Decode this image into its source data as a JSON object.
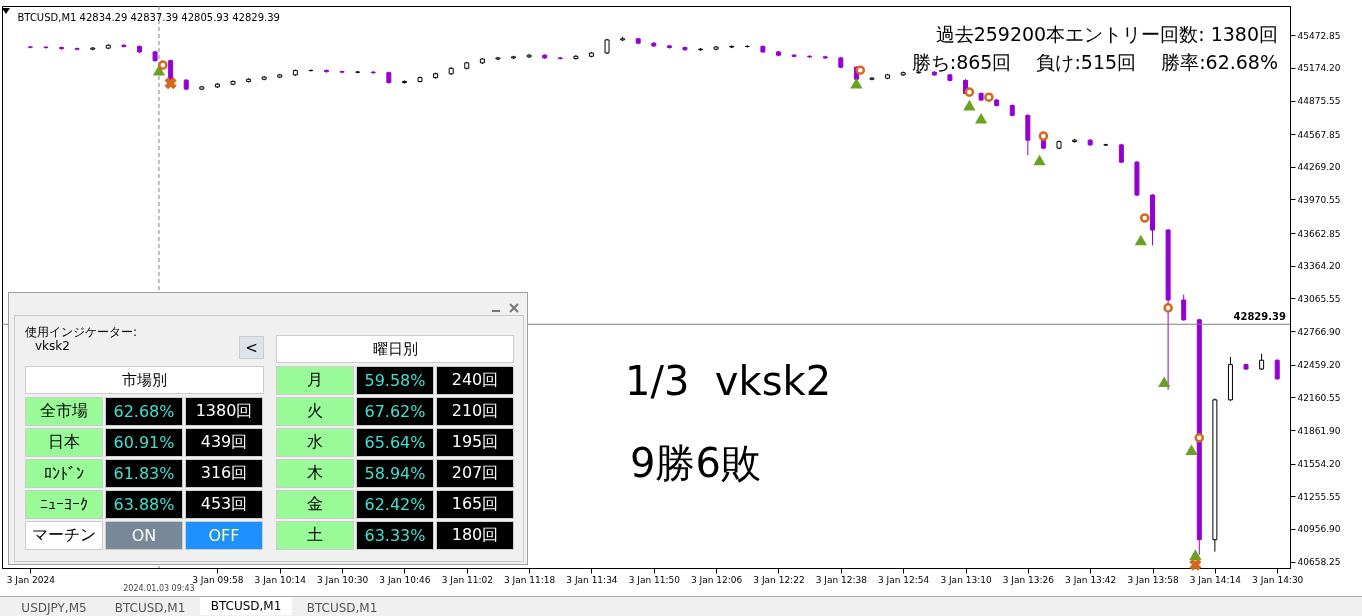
{
  "chart_data": {
    "type": "candlestick",
    "title": "BTCUSD,M1  42834.29 42837.39 42805.93 42829.39",
    "x": [
      "2024-01-03T09:10",
      "2024-01-03T09:14",
      "2024-01-03T09:18",
      "2024-01-03T09:22",
      "2024-01-03T09:26",
      "2024-01-03T09:30",
      "2024-01-03T09:34",
      "2024-01-03T09:38",
      "2024-01-03T09:42",
      "2024-01-03T09:46",
      "2024-01-03T09:50",
      "2024-01-03T09:54",
      "2024-01-03T09:58",
      "2024-01-03T10:02",
      "2024-01-03T10:06",
      "2024-01-03T10:10",
      "2024-01-03T10:14",
      "2024-01-03T10:18",
      "2024-01-03T10:22",
      "2024-01-03T10:26",
      "2024-01-03T10:30",
      "2024-01-03T10:34",
      "2024-01-03T10:38",
      "2024-01-03T10:42",
      "2024-01-03T10:46",
      "2024-01-03T10:50",
      "2024-01-03T10:54",
      "2024-01-03T10:58",
      "2024-01-03T11:02",
      "2024-01-03T11:06",
      "2024-01-03T11:10",
      "2024-01-03T11:14",
      "2024-01-03T11:18",
      "2024-01-03T11:22",
      "2024-01-03T11:26",
      "2024-01-03T11:30",
      "2024-01-03T11:34",
      "2024-01-03T11:38",
      "2024-01-03T11:42",
      "2024-01-03T11:46",
      "2024-01-03T11:50",
      "2024-01-03T11:54",
      "2024-01-03T11:58",
      "2024-01-03T12:02",
      "2024-01-03T12:06",
      "2024-01-03T12:10",
      "2024-01-03T12:14",
      "2024-01-03T12:18",
      "2024-01-03T12:22",
      "2024-01-03T12:26",
      "2024-01-03T12:30",
      "2024-01-03T12:34",
      "2024-01-03T12:38",
      "2024-01-03T12:42",
      "2024-01-03T12:46",
      "2024-01-03T12:50",
      "2024-01-03T12:54",
      "2024-01-03T12:58",
      "2024-01-03T13:02",
      "2024-01-03T13:06",
      "2024-01-03T13:10",
      "2024-01-03T13:14",
      "2024-01-03T13:18",
      "2024-01-03T13:22",
      "2024-01-03T13:26",
      "2024-01-03T13:30",
      "2024-01-03T13:34",
      "2024-01-03T13:38",
      "2024-01-03T13:42",
      "2024-01-03T13:46",
      "2024-01-03T13:50",
      "2024-01-03T13:54",
      "2024-01-03T13:58",
      "2024-01-03T14:02",
      "2024-01-03T14:06",
      "2024-01-03T14:10",
      "2024-01-03T14:14",
      "2024-01-03T14:18",
      "2024-01-03T14:22",
      "2024-01-03T14:26",
      "2024-01-03T14:30"
    ],
    "ohlc": [
      [
        45365,
        45375,
        45353,
        45363
      ],
      [
        45363,
        45373,
        45350,
        45360
      ],
      [
        45360,
        45370,
        45340,
        45350
      ],
      [
        45350,
        45360,
        45335,
        45345
      ],
      [
        45345,
        45365,
        45335,
        45355
      ],
      [
        45355,
        45391,
        45345,
        45381
      ],
      [
        45381,
        45391,
        45360,
        45370
      ],
      [
        45370,
        45380,
        45310,
        45320
      ],
      [
        45320,
        45330,
        45230,
        45240
      ],
      [
        45240,
        45250,
        45052,
        45062
      ],
      [
        45062,
        45072,
        44970,
        44980
      ],
      [
        44980,
        45010,
        44970,
        45000
      ],
      [
        45000,
        45035,
        44990,
        45025
      ],
      [
        45025,
        45060,
        45015,
        45050
      ],
      [
        45050,
        45080,
        45040,
        45070
      ],
      [
        45070,
        45100,
        45060,
        45090
      ],
      [
        45090,
        45120,
        45080,
        45110
      ],
      [
        45110,
        45160,
        45100,
        45150
      ],
      [
        45150,
        45160,
        45140,
        45150
      ],
      [
        45150,
        45160,
        45130,
        45140
      ],
      [
        45140,
        45150,
        45125,
        45135
      ],
      [
        45135,
        45145,
        45125,
        45135
      ],
      [
        45135,
        45145,
        45120,
        45130
      ],
      [
        45130,
        45140,
        45030,
        45040
      ],
      [
        45040,
        45060,
        45030,
        45050
      ],
      [
        45050,
        45095,
        45040,
        45085
      ],
      [
        45085,
        45130,
        45075,
        45120
      ],
      [
        45120,
        45180,
        45110,
        45170
      ],
      [
        45170,
        45230,
        45160,
        45220
      ],
      [
        45220,
        45265,
        45210,
        45255
      ],
      [
        45255,
        45275,
        45245,
        45265
      ],
      [
        45265,
        45285,
        45255,
        45275
      ],
      [
        45275,
        45300,
        45265,
        45290
      ],
      [
        45290,
        45300,
        45255,
        45265
      ],
      [
        45265,
        45275,
        45250,
        45260
      ],
      [
        45260,
        45290,
        45250,
        45280
      ],
      [
        45280,
        45320,
        45270,
        45310
      ],
      [
        45310,
        45440,
        45300,
        45430
      ],
      [
        45430,
        45460,
        45420,
        45440
      ],
      [
        45440,
        45450,
        45390,
        45400
      ],
      [
        45400,
        45410,
        45365,
        45375
      ],
      [
        45375,
        45385,
        45350,
        45360
      ],
      [
        45360,
        45370,
        45330,
        45340
      ],
      [
        45340,
        45355,
        45330,
        45345
      ],
      [
        45345,
        45375,
        45335,
        45365
      ],
      [
        45365,
        45380,
        45355,
        45370
      ],
      [
        45370,
        45380,
        45360,
        45370
      ],
      [
        45370,
        45380,
        45310,
        45320
      ],
      [
        45320,
        45330,
        45280,
        45290
      ],
      [
        45290,
        45300,
        45270,
        45280
      ],
      [
        45280,
        45290,
        45265,
        45275
      ],
      [
        45275,
        45285,
        45255,
        45265
      ],
      [
        45265,
        45275,
        45170,
        45180
      ],
      [
        45180,
        45190,
        45060,
        45070
      ],
      [
        45070,
        45090,
        45060,
        45080
      ],
      [
        45080,
        45120,
        45070,
        45110
      ],
      [
        45110,
        45140,
        45100,
        45130
      ],
      [
        45130,
        45145,
        45120,
        45135
      ],
      [
        45135,
        45145,
        45100,
        45110
      ],
      [
        45110,
        45120,
        45050,
        45060
      ],
      [
        45060,
        45070,
        44930,
        44940
      ],
      [
        44940,
        44950,
        44870,
        44880
      ],
      [
        44880,
        44890,
        44820,
        44830
      ],
      [
        44830,
        44840,
        44730,
        44740
      ],
      [
        44740,
        44750,
        44376,
        44513
      ],
      [
        44513,
        44523,
        44430,
        44440
      ],
      [
        44440,
        44510,
        44430,
        44500
      ],
      [
        44500,
        44523,
        44490,
        44513
      ],
      [
        44513,
        44523,
        44460,
        44470
      ],
      [
        44470,
        44480,
        44460,
        44470
      ],
      [
        44470,
        44480,
        44302,
        44312
      ],
      [
        44312,
        44322,
        44001,
        44011
      ],
      [
        44011,
        44021,
        43550,
        43691
      ],
      [
        43691,
        43701,
        42229,
        43051
      ],
      [
        43051,
        43100,
        42860,
        42870
      ],
      [
        42870,
        42880,
        40722,
        40859
      ],
      [
        40859,
        42150,
        40750,
        42138
      ],
      [
        42138,
        42530,
        42128,
        42460
      ],
      [
        42460,
        42470,
        42410,
        42420
      ],
      [
        42420,
        42560,
        42410,
        42500
      ],
      [
        42500,
        42510,
        42320,
        42330
      ]
    ],
    "colors": [
      "#9400d3",
      "#9400d3",
      "#9400d3",
      "#9400d3",
      "#ffffff",
      "#ffffff",
      "#9400d3",
      "#9400d3",
      "#9400d3",
      "#9400d3",
      "#9400d3",
      "#ffffff",
      "#ffffff",
      "#ffffff",
      "#ffffff",
      "#ffffff",
      "#ffffff",
      "#ffffff",
      "#000000",
      "#9400d3",
      "#9400d3",
      "#000000",
      "#9400d3",
      "#9400d3",
      "#ffffff",
      "#ffffff",
      "#ffffff",
      "#ffffff",
      "#ffffff",
      "#ffffff",
      "#ffffff",
      "#ffffff",
      "#ffffff",
      "#9400d3",
      "#9400d3",
      "#ffffff",
      "#ffffff",
      "#ffffff",
      "#ffffff",
      "#9400d3",
      "#9400d3",
      "#9400d3",
      "#9400d3",
      "#ffffff",
      "#ffffff",
      "#ffffff",
      "#000000",
      "#9400d3",
      "#9400d3",
      "#9400d3",
      "#9400d3",
      "#9400d3",
      "#9400d3",
      "#9400d3",
      "#ffffff",
      "#ffffff",
      "#ffffff",
      "#ffffff",
      "#9400d3",
      "#9400d3",
      "#9400d3",
      "#9400d3",
      "#9400d3",
      "#9400d3",
      "#9400d3",
      "#9400d3",
      "#ffffff",
      "#ffffff",
      "#9400d3",
      "#000000",
      "#9400d3",
      "#9400d3",
      "#9400d3",
      "#9400d3",
      "#9400d3",
      "#9400d3",
      "#ffffff",
      "#ffffff",
      "#9400d3",
      "#ffffff",
      "#9400d3"
    ],
    "series": [
      {
        "type": "scatter",
        "marker": "triangle",
        "color": "#6aa121",
        "x": [
          "2024-01-03T09:43",
          "2024-01-03T12:42",
          "2024-01-03T13:11",
          "2024-01-03T13:14",
          "2024-01-03T13:29",
          "2024-01-03T13:55",
          "2024-01-03T14:01",
          "2024-01-03T14:08",
          "2024-01-03T14:09"
        ],
        "values": [
          45153,
          45034,
          44833,
          44714,
          44331,
          43600,
          42303,
          41681,
          40722
        ]
      },
      {
        "type": "scatter",
        "marker": "circle",
        "color": "#d2691e",
        "x": [
          "2024-01-03T09:44",
          "2024-01-03T12:43",
          "2024-01-03T13:11",
          "2024-01-03T13:16",
          "2024-01-03T13:30",
          "2024-01-03T13:56",
          "2024-01-03T14:02",
          "2024-01-03T14:10"
        ],
        "values": [
          45199,
          45153,
          44952,
          44906,
          44550,
          43801,
          42979,
          41791
        ]
      },
      {
        "type": "scatter",
        "marker": "cross",
        "color": "#d2691e",
        "x": [
          "2024-01-03T09:46",
          "2024-01-03T14:09"
        ],
        "values": [
          45034,
          40630
        ]
      }
    ],
    "xlim": [
      "2024-01-03T09:04",
      "2024-01-03T14:32"
    ],
    "xticks": [
      {
        "value": "2024-01-03T09:10",
        "label": "3 Jan 2024"
      },
      {
        "value": "2024-01-03T09:58",
        "label": "3 Jan 09:58"
      },
      {
        "value": "2024-01-03T10:14",
        "label": "3 Jan 10:14"
      },
      {
        "value": "2024-01-03T10:30",
        "label": "3 Jan 10:30"
      },
      {
        "value": "2024-01-03T10:46",
        "label": "3 Jan 10:46"
      },
      {
        "value": "2024-01-03T11:02",
        "label": "3 Jan 11:02"
      },
      {
        "value": "2024-01-03T11:18",
        "label": "3 Jan 11:18"
      },
      {
        "value": "2024-01-03T11:34",
        "label": "3 Jan 11:34"
      },
      {
        "value": "2024-01-03T11:50",
        "label": "3 Jan 11:50"
      },
      {
        "value": "2024-01-03T12:06",
        "label": "3 Jan 12:06"
      },
      {
        "value": "2024-01-03T12:22",
        "label": "3 Jan 12:22"
      },
      {
        "value": "2024-01-03T12:38",
        "label": "3 Jan 12:38"
      },
      {
        "value": "2024-01-03T12:54",
        "label": "3 Jan 12:54"
      },
      {
        "value": "2024-01-03T13:10",
        "label": "3 Jan 13:10"
      },
      {
        "value": "2024-01-03T13:26",
        "label": "3 Jan 13:26"
      },
      {
        "value": "2024-01-03T13:42",
        "label": "3 Jan 13:42"
      },
      {
        "value": "2024-01-03T13:58",
        "label": "3 Jan 13:58"
      },
      {
        "value": "2024-01-03T14:14",
        "label": "3 Jan 14:14"
      },
      {
        "value": "2024-01-03T14:30",
        "label": "3 Jan 14:30"
      }
    ],
    "ylim": [
      40600,
      45740
    ],
    "yticks": [
      {
        "value": 45472.85,
        "label": "45472.85"
      },
      {
        "value": 45174.2,
        "label": "45174.20"
      },
      {
        "value": 44875.55,
        "label": "44875.55"
      },
      {
        "value": 44567.85,
        "label": "44567.85"
      },
      {
        "value": 44269.2,
        "label": "44269.20"
      },
      {
        "value": 43970.55,
        "label": "43970.55"
      },
      {
        "value": 43662.85,
        "label": "43662.85"
      },
      {
        "value": 43364.2,
        "label": "43364.20"
      },
      {
        "value": 43065.55,
        "label": "43065.55"
      },
      {
        "value": 42766.9,
        "label": "42766.90"
      },
      {
        "value": 42459.2,
        "label": "42459.20"
      },
      {
        "value": 42160.55,
        "label": "42160.55"
      },
      {
        "value": 41861.9,
        "label": "41861.90"
      },
      {
        "value": 41554.2,
        "label": "41554.20"
      },
      {
        "value": 41255.55,
        "label": "41255.55"
      },
      {
        "value": 40956.9,
        "label": "40956.90"
      },
      {
        "value": 40658.25,
        "label": "40658.25"
      }
    ],
    "ref_lines": [
      {
        "axis": "y",
        "value": 42829.39,
        "label": "42829.39",
        "color": "#808080"
      },
      {
        "axis": "x",
        "value": "2024-01-03T09:43",
        "label": "2024.01.03 09:43",
        "color": "#808080",
        "line_style": "dashed"
      }
    ],
    "annotations": [
      "過去259200本エントリー回数: 1380回",
      "勝ち:865回　 負け:515回　 勝率:62.68%",
      "1/3  vksk2",
      "9勝6敗",
      "使用インジケーター:",
      "vksk2",
      "<",
      "市場別",
      "曜日別",
      "全市場",
      "62.68%",
      "1380回",
      "日本",
      "60.91%",
      "439回",
      "ﾛﾝﾄﾞﾝ",
      "61.83%",
      "316回",
      "ﾆｭｰﾖｰｸ",
      "63.88%",
      "453回",
      "マーチン",
      "ON",
      "OFF",
      "月",
      "59.58%",
      "240回",
      "火",
      "67.62%",
      "210回",
      "水",
      "65.64%",
      "195回",
      "木",
      "58.94%",
      "207回",
      "金",
      "62.42%",
      "165回",
      "土",
      "63.33%",
      "180回",
      "USDJPY,M5",
      "BTCUSD,M1",
      "BTCUSD,M1",
      "BTCUSD,M1"
    ],
    "grid": false
  }
}
